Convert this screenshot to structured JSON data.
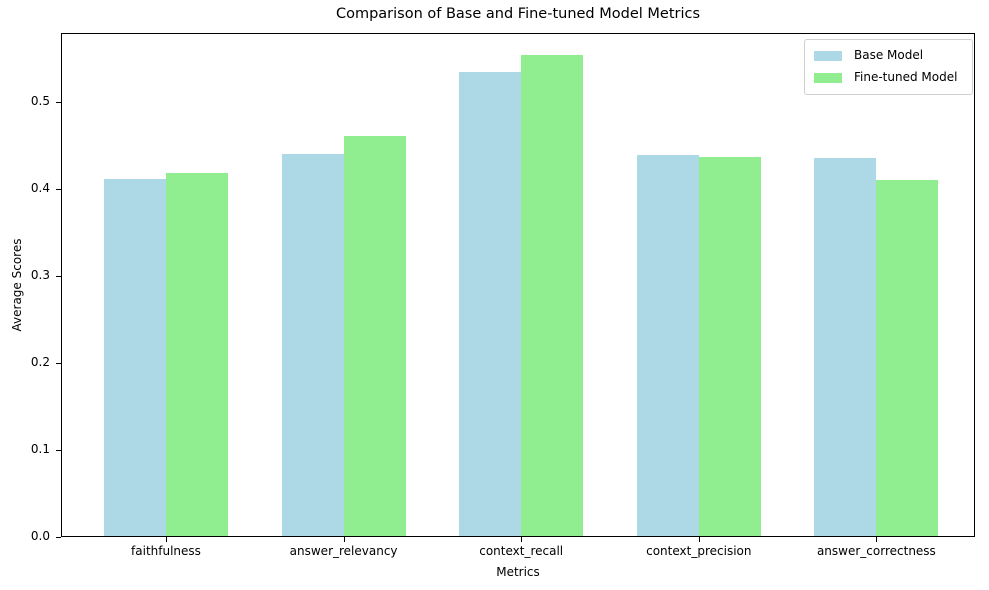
{
  "chart_data": {
    "type": "bar",
    "title": "Comparison of Base and Fine-tuned Model Metrics",
    "xlabel": "Metrics",
    "ylabel": "Average Scores",
    "categories": [
      "faithfulness",
      "answer_relevancy",
      "context_recall",
      "context_precision",
      "answer_correctness"
    ],
    "series": [
      {
        "name": "Base Model",
        "color": "#add8e6",
        "values": [
          0.41,
          0.439,
          0.533,
          0.438,
          0.434
        ]
      },
      {
        "name": "Fine-tuned Model",
        "color": "#90ee90",
        "values": [
          0.417,
          0.46,
          0.553,
          0.436,
          0.409
        ]
      }
    ],
    "ylim": [
      0.0,
      0.579
    ],
    "yticks": [
      "0.0",
      "0.1",
      "0.2",
      "0.3",
      "0.4",
      "0.5"
    ],
    "grid": false,
    "legend_position": "upper right"
  }
}
